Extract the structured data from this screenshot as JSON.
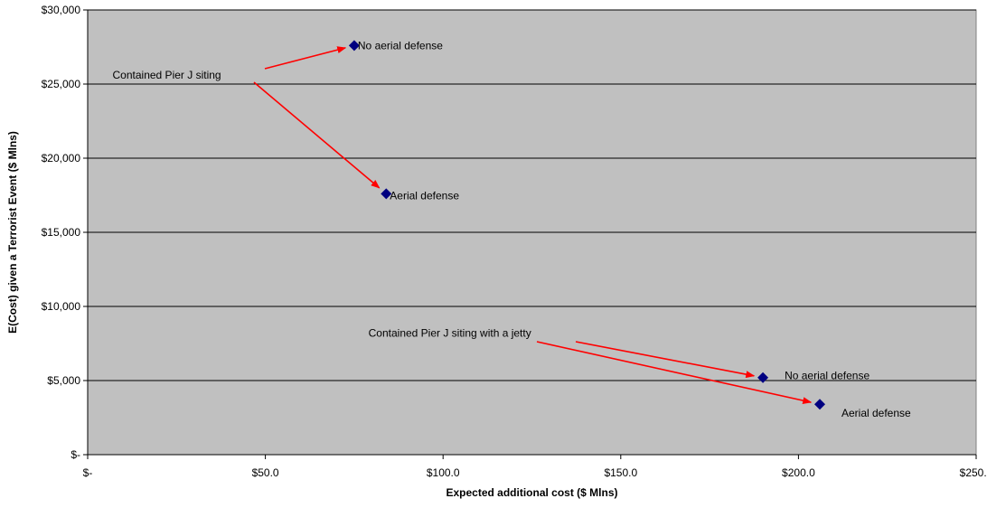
{
  "chart_data": {
    "type": "scatter",
    "xlabel": "Expected additional cost ($ Mlns)",
    "ylabel": "E(Cost) given a Terrorist Event ($ Mlns)",
    "xlim": [
      0,
      250
    ],
    "ylim": [
      0,
      30000
    ],
    "x_ticks": [
      {
        "value": 0,
        "label": "$-"
      },
      {
        "value": 50,
        "label": "$50.0"
      },
      {
        "value": 100,
        "label": "$100.0"
      },
      {
        "value": 150,
        "label": "$150.0"
      },
      {
        "value": 200,
        "label": "$200.0"
      },
      {
        "value": 250,
        "label": "$250.0"
      }
    ],
    "y_ticks": [
      {
        "value": 0,
        "label": "$-"
      },
      {
        "value": 5000,
        "label": "$5,000"
      },
      {
        "value": 10000,
        "label": "$10,000"
      },
      {
        "value": 15000,
        "label": "$15,000"
      },
      {
        "value": 20000,
        "label": "$20,000"
      },
      {
        "value": 25000,
        "label": "$25,000"
      },
      {
        "value": 30000,
        "label": "$30,000"
      }
    ],
    "grid": "horizontal",
    "colors": {
      "plot_bg": "#c0c0c0",
      "marker": "#000080",
      "arrow": "#ff0000"
    },
    "points": [
      {
        "x": 75,
        "y": 27600,
        "label": "No aerial defense"
      },
      {
        "x": 84,
        "y": 17600,
        "label": "Aerial defense"
      },
      {
        "x": 190,
        "y": 5200,
        "label": "No aerial defense"
      },
      {
        "x": 206,
        "y": 3400,
        "label": "Aerial defense"
      }
    ],
    "annotations": [
      {
        "text": "Contained Pier J siting",
        "x": 7,
        "y": 25600,
        "arrows_to": [
          0,
          1
        ]
      },
      {
        "text": "Contained Pier J siting with a jetty",
        "x": 79,
        "y": 8200,
        "arrows_to": [
          2,
          3
        ]
      }
    ]
  }
}
